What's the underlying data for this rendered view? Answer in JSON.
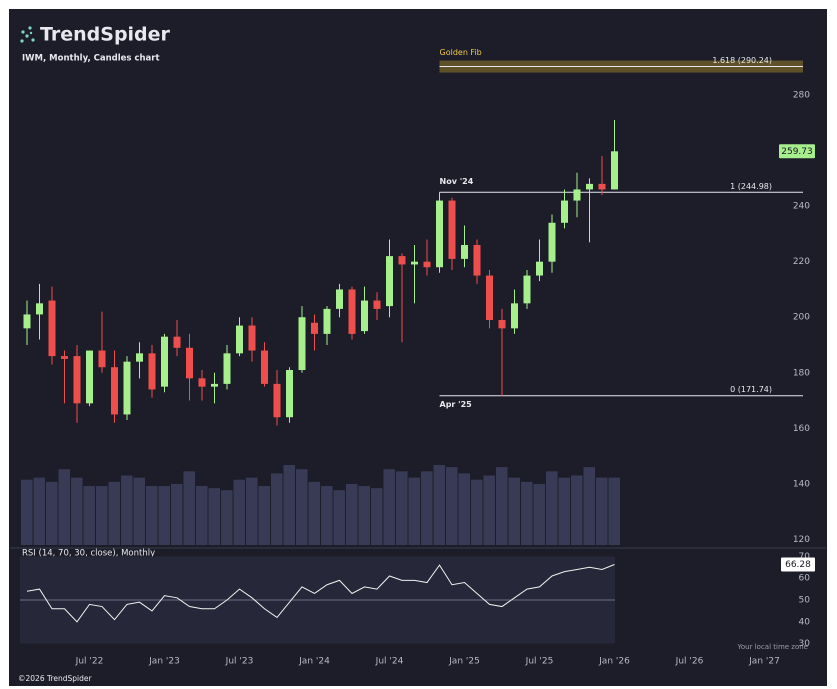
{
  "chart_data": {
    "type": "candlestick",
    "brand": "TrendSpider",
    "title": "IWM, Monthly, Candles chart",
    "copyright": "©2026 TrendSpider",
    "timezone_note": "Your local time zone",
    "categories": [
      null,
      null,
      null,
      null,
      null,
      "Jul '22",
      null,
      null,
      null,
      null,
      null,
      "Jan '23",
      null,
      null,
      null,
      null,
      null,
      "Jul '23",
      null,
      null,
      null,
      null,
      null,
      "Jan '24",
      null,
      null,
      null,
      null,
      null,
      "Jul '24",
      null,
      null,
      null,
      null,
      null,
      "Jan '25",
      null,
      null,
      null,
      null,
      null,
      "Jul '25",
      null,
      null,
      null,
      null,
      null,
      "Jan '26",
      null,
      null,
      null,
      null,
      null,
      "Jul '26",
      null,
      null,
      null,
      null,
      null,
      "Jan '27"
    ],
    "open": [
      196,
      201,
      206,
      186,
      186,
      169,
      188,
      182,
      165,
      184,
      187,
      175,
      193,
      189,
      178,
      175,
      176,
      187,
      197,
      188,
      176,
      164,
      181,
      198,
      194,
      203,
      210,
      195,
      206,
      204,
      222,
      219,
      220,
      218,
      242,
      221,
      226,
      215,
      199,
      196,
      205,
      215,
      220,
      234,
      242,
      246,
      248,
      246,
      null,
      null,
      null,
      null,
      null,
      null,
      null,
      null,
      null,
      null,
      null,
      null
    ],
    "high": [
      206,
      212,
      211,
      188,
      190,
      188,
      202,
      188,
      186,
      191,
      190,
      194,
      199,
      194,
      181,
      180,
      190,
      200,
      200,
      191,
      181,
      182,
      204,
      201,
      204,
      212,
      211,
      211,
      209,
      228,
      223,
      226,
      228,
      244.98,
      243,
      233,
      228,
      217,
      203,
      210,
      217,
      228,
      237,
      246,
      252,
      250,
      258,
      271,
      null,
      null,
      null,
      null,
      null,
      null,
      null,
      null,
      null,
      null,
      null,
      null
    ],
    "low": [
      190,
      192,
      183,
      169,
      162,
      168,
      180,
      162,
      163,
      178,
      171,
      173,
      186,
      170,
      170,
      169,
      174,
      186,
      184,
      175,
      161,
      162,
      180,
      188,
      190,
      200,
      192,
      194,
      199,
      200,
      191,
      205,
      215,
      216,
      217,
      218,
      212,
      196,
      171.74,
      194,
      203,
      213,
      216,
      232,
      236,
      227,
      244,
      246,
      null,
      null,
      null,
      null,
      null,
      null,
      null,
      null,
      null,
      null,
      null,
      null
    ],
    "close": [
      201,
      205,
      186,
      185,
      169,
      188,
      182,
      165,
      184,
      187,
      174,
      193,
      189,
      178,
      175,
      176,
      187,
      197,
      188,
      176,
      164,
      181,
      200,
      194,
      203,
      210,
      194,
      206,
      203,
      222,
      219,
      220,
      218,
      242,
      221,
      226,
      215,
      199,
      196,
      205,
      215,
      220,
      234,
      242,
      246,
      248,
      246,
      259.73,
      null,
      null,
      null,
      null,
      null,
      null,
      null,
      null,
      null,
      null,
      null,
      null
    ],
    "volume": [
      620,
      640,
      600,
      720,
      640,
      560,
      560,
      600,
      660,
      640,
      560,
      560,
      580,
      700,
      560,
      540,
      520,
      620,
      640,
      560,
      680,
      760,
      720,
      600,
      560,
      520,
      580,
      560,
      540,
      720,
      700,
      640,
      700,
      760,
      740,
      680,
      620,
      660,
      740,
      640,
      600,
      580,
      700,
      640,
      660,
      740,
      640,
      640,
      null,
      null,
      null,
      null,
      null,
      null,
      null,
      null,
      null,
      null,
      null,
      null
    ],
    "up_color": "#a6ef8c",
    "down_color": "#ef4f4c",
    "volume_color": "#393a55",
    "ylim": [
      118,
      307
    ],
    "yticks": [
      120,
      140,
      160,
      180,
      200,
      220,
      240,
      260,
      280
    ],
    "fib": {
      "title": "Golden Fib",
      "levels": [
        {
          "value": 290.24,
          "label": "1.618 (290.24)"
        },
        {
          "value": 244.98,
          "label": "1 (244.98)"
        },
        {
          "value": 171.74,
          "label": "0 (171.74)"
        }
      ],
      "start_label": "Nov '24",
      "end_label": "Apr '25"
    },
    "rsi": {
      "title": "RSI (14, 70, 30, close), Monthly",
      "color": "#f2f2f2",
      "values": [
        54,
        55,
        46,
        46,
        40,
        48,
        47,
        41,
        48,
        49,
        45,
        52,
        51,
        47,
        46,
        46,
        50,
        55,
        51,
        46,
        42,
        49,
        56,
        53,
        57,
        59,
        53,
        56,
        55,
        61,
        59,
        59,
        58,
        66,
        57,
        58,
        53,
        48,
        47,
        51,
        55,
        56,
        61,
        63,
        64,
        65,
        64,
        66.28,
        null,
        null,
        null,
        null,
        null,
        null,
        null,
        null,
        null,
        null,
        null,
        null
      ],
      "ylim": [
        28,
        72
      ],
      "yticks": [
        30,
        40,
        50,
        60,
        70
      ],
      "band": [
        30,
        70
      ],
      "midline": 50
    }
  }
}
